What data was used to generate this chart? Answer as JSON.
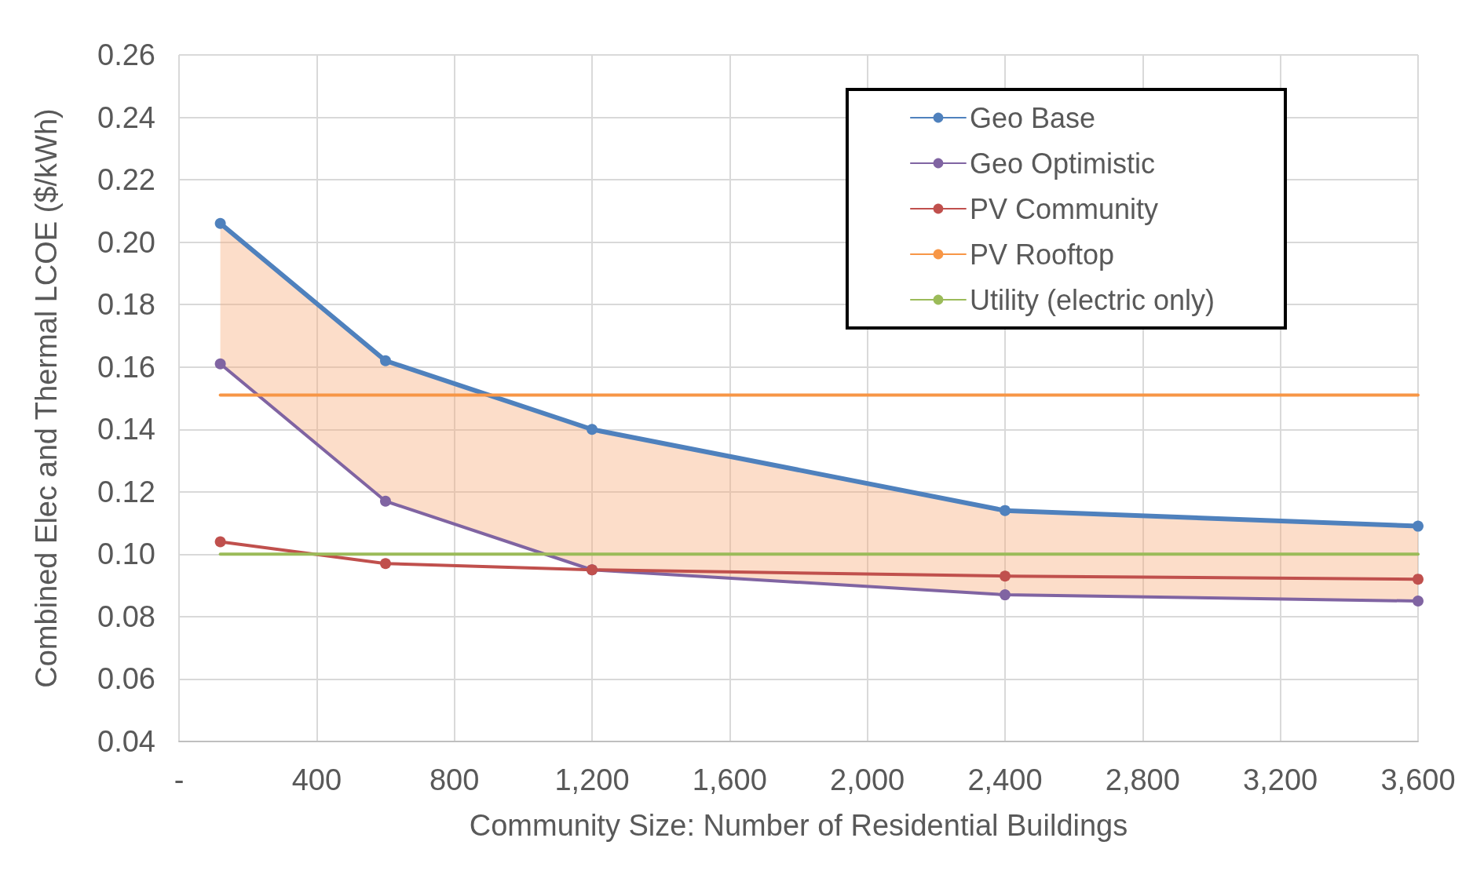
{
  "chart_data": {
    "type": "line",
    "xlabel": "Community Size: Number of Residential Buildings",
    "ylabel": "Combined Elec and Thermal LCOE ($/kWh)",
    "x": [
      120,
      600,
      1200,
      2400,
      3600
    ],
    "series": [
      {
        "name": "Geo Base",
        "color": "#4f81bd",
        "values": [
          0.206,
          0.162,
          0.14,
          0.114,
          0.109
        ],
        "lower": [
          0.161,
          0.117,
          0.095,
          0.087,
          0.085
        ],
        "upper": [
          0.206,
          0.162,
          0.14,
          0.114,
          0.109
        ]
      },
      {
        "name": "Geo Optimistic",
        "color": "#8064a2",
        "values": [
          0.161,
          0.117,
          0.095,
          0.087,
          0.085
        ]
      },
      {
        "name": "PV Community",
        "color": "#c0504d",
        "values": [
          0.104,
          0.097,
          0.095,
          0.093,
          0.092
        ]
      },
      {
        "name": "PV Rooftop",
        "color": "#f79646",
        "values": [
          0.151,
          0.151,
          0.151,
          0.151,
          0.151
        ],
        "marker": "none"
      },
      {
        "name": "Utility (electric only)",
        "color": "#9bbb59",
        "values": [
          0.1,
          0.1,
          0.1,
          0.1,
          0.1
        ],
        "marker": "none"
      }
    ],
    "xlim": [
      0,
      3600
    ],
    "xticks": [
      {
        "value": 0,
        "label": "-"
      },
      {
        "value": 400,
        "label": "400"
      },
      {
        "value": 800,
        "label": "800"
      },
      {
        "value": 1200,
        "label": "1,200"
      },
      {
        "value": 1600,
        "label": "1,600"
      },
      {
        "value": 2000,
        "label": "2,000"
      },
      {
        "value": 2400,
        "label": "2,400"
      },
      {
        "value": 2800,
        "label": "2,800"
      },
      {
        "value": 3200,
        "label": "3,200"
      },
      {
        "value": 3600,
        "label": "3,600"
      }
    ],
    "ylim": [
      0.04,
      0.26
    ],
    "yticks": [
      {
        "value": 0.04,
        "label": "0.04"
      },
      {
        "value": 0.06,
        "label": "0.06"
      },
      {
        "value": 0.08,
        "label": "0.08"
      },
      {
        "value": 0.1,
        "label": "0.10"
      },
      {
        "value": 0.12,
        "label": "0.12"
      },
      {
        "value": 0.14,
        "label": "0.14"
      },
      {
        "value": 0.16,
        "label": "0.16"
      },
      {
        "value": 0.18,
        "label": "0.18"
      },
      {
        "value": 0.2,
        "label": "0.20"
      },
      {
        "value": 0.22,
        "label": "0.22"
      },
      {
        "value": 0.24,
        "label": "0.24"
      },
      {
        "value": 0.26,
        "label": "0.26"
      }
    ],
    "grid": true,
    "legend": "top right",
    "marker": "circle",
    "line_style": "solid"
  }
}
